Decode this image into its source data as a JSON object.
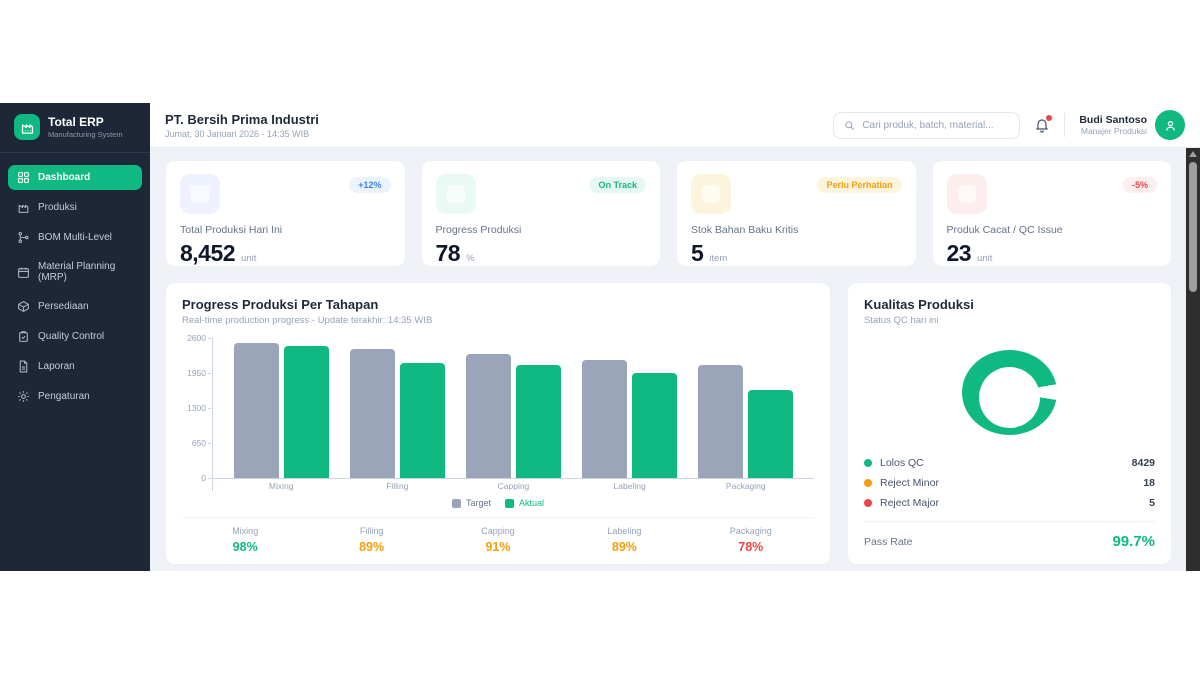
{
  "colors": {
    "brand_green": "#10b981",
    "sidebar_bg": "#1e2738",
    "target_gray": "#9aa5b9",
    "warn_orange": "#f59e0b",
    "bad_red": "#ef4444",
    "info_blue": "#3b82f6"
  },
  "app": {
    "name": "Total ERP",
    "tagline": "Manufacturing System"
  },
  "sidebar": {
    "items": [
      {
        "label": "Dashboard",
        "active": true
      },
      {
        "label": "Produksi"
      },
      {
        "label": "BOM Multi-Level"
      },
      {
        "label": "Material Planning (MRP)"
      },
      {
        "label": "Persediaan"
      },
      {
        "label": "Quality Control"
      },
      {
        "label": "Laporan"
      },
      {
        "label": "Pengaturan"
      }
    ]
  },
  "header": {
    "company": "PT. Bersih Prima Industri",
    "datetime": "Jumat, 30 Januari 2026 - 14:35 WIB",
    "search_placeholder": "Cari produk, batch, material...",
    "user": {
      "name": "Budi Santoso",
      "role": "Manajer Produksi"
    }
  },
  "kpis": [
    {
      "label": "Total Produksi Hari Ini",
      "value": "8,452",
      "unit": "unit",
      "badge": "+12%"
    },
    {
      "label": "Progress Produksi",
      "value": "78",
      "unit": "%",
      "badge": "On Track"
    },
    {
      "label": "Stok Bahan Baku Kritis",
      "value": "5",
      "unit": "item",
      "badge": "Perlu Perhatian"
    },
    {
      "label": "Produk Cacat / QC Issue",
      "value": "23",
      "unit": "unit",
      "badge": "-5%"
    }
  ],
  "production_chart": {
    "title": "Progress Produksi Per Tahapan",
    "subtitle": "Real-time production progress - Update terakhir: 14:35 WIB",
    "stages": [
      {
        "label": "Mixing",
        "pct": "98%",
        "status": "good"
      },
      {
        "label": "Filling",
        "pct": "89%",
        "status": "warn"
      },
      {
        "label": "Capping",
        "pct": "91%",
        "status": "warn"
      },
      {
        "label": "Labeling",
        "pct": "89%",
        "status": "warn"
      },
      {
        "label": "Packaging",
        "pct": "78%",
        "status": "bad"
      }
    ]
  },
  "quality": {
    "title": "Kualitas Produksi",
    "subtitle": "Status QC hari ini",
    "items": [
      {
        "label": "Lolos QC",
        "value": "8429",
        "color": "#10b981"
      },
      {
        "label": "Reject Minor",
        "value": "18",
        "color": "#f59e0b"
      },
      {
        "label": "Reject Major",
        "value": "5",
        "color": "#ef4444"
      }
    ],
    "pass_rate_label": "Pass Rate",
    "pass_rate": "99.7%"
  },
  "chart_data": [
    {
      "type": "bar",
      "title": "Progress Produksi Per Tahapan",
      "categories": [
        "Mixing",
        "Filling",
        "Capping",
        "Labeling",
        "Packaging"
      ],
      "series": [
        {
          "name": "Target",
          "color": "#9aa5b9",
          "values": [
            2500,
            2400,
            2300,
            2200,
            2100
          ]
        },
        {
          "name": "Aktual",
          "color": "#10b981",
          "values": [
            2450,
            2136,
            2093,
            1958,
            1638
          ]
        }
      ],
      "yticks": [
        0,
        650,
        1300,
        1950,
        2600
      ],
      "ylim": [
        0,
        2600
      ],
      "grid": false,
      "legend_position": "bottom"
    },
    {
      "type": "pie",
      "title": "Kualitas Produksi",
      "labels": [
        "Lolos QC",
        "Reject Minor",
        "Reject Major"
      ],
      "values": [
        8429,
        18,
        5
      ],
      "colors": [
        "#10b981",
        "#f59e0b",
        "#ef4444"
      ]
    }
  ]
}
